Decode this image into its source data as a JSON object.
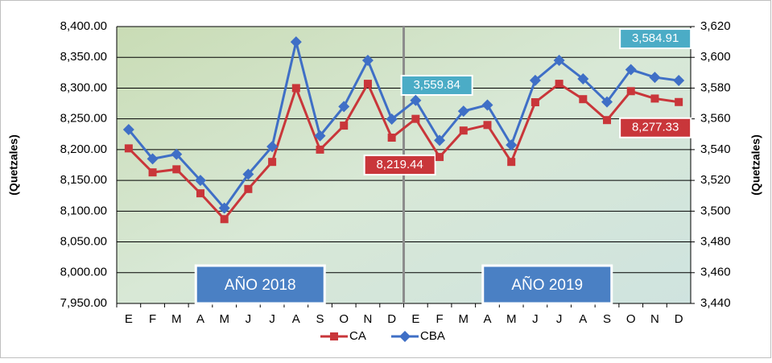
{
  "chart_data": {
    "type": "line",
    "categories": [
      "E",
      "F",
      "M",
      "A",
      "M",
      "J",
      "J",
      "A",
      "S",
      "O",
      "N",
      "D",
      "E",
      "F",
      "M",
      "A",
      "M",
      "J",
      "J",
      "A",
      "S",
      "O",
      "N",
      "D"
    ],
    "ylabel": "(Quetzales)",
    "y2label": "(Quetzales)",
    "ylim": [
      7950,
      8400
    ],
    "yticks": [
      {
        "value": 7950,
        "label": "7,950.00"
      },
      {
        "value": 8000,
        "label": "8,000.00"
      },
      {
        "value": 8050,
        "label": "8,050.00"
      },
      {
        "value": 8100,
        "label": "8,100.00"
      },
      {
        "value": 8150,
        "label": "8,150.00"
      },
      {
        "value": 8200,
        "label": "8,200.00"
      },
      {
        "value": 8250,
        "label": "8,250.00"
      },
      {
        "value": 8300,
        "label": "8,300.00"
      },
      {
        "value": 8350,
        "label": "8,350.00"
      },
      {
        "value": 8400,
        "label": "8,400.00"
      }
    ],
    "y2lim": [
      3440,
      3620
    ],
    "y2ticks": [
      {
        "value": 3440,
        "label": "3,440"
      },
      {
        "value": 3460,
        "label": "3,460"
      },
      {
        "value": 3480,
        "label": "3,480"
      },
      {
        "value": 3500,
        "label": "3,500"
      },
      {
        "value": 3520,
        "label": "3,520"
      },
      {
        "value": 3540,
        "label": "3,540"
      },
      {
        "value": 3560,
        "label": "3,560"
      },
      {
        "value": 3580,
        "label": "3,580"
      },
      {
        "value": 3600,
        "label": "3,600"
      },
      {
        "value": 3620,
        "label": "3,620"
      }
    ],
    "grid": true,
    "annotations": [
      "AÑO 2018",
      "AÑO 2019"
    ],
    "series": [
      {
        "name": "CA",
        "color": "#c9363a",
        "marker": "square",
        "values": [
          8202,
          8163,
          8168,
          8129,
          8087,
          8136,
          8180,
          8300,
          8200,
          8239,
          8307,
          8219.44,
          8250,
          8188,
          8231,
          8240,
          8180,
          8277,
          8307,
          8282,
          8248,
          8295,
          8283,
          8277.33
        ],
        "value_labels": [
          null,
          null,
          null,
          null,
          null,
          null,
          null,
          null,
          null,
          null,
          null,
          "8,219.44",
          null,
          null,
          null,
          null,
          null,
          null,
          null,
          null,
          null,
          null,
          null,
          "8,277.33"
        ]
      },
      {
        "name": "CBA",
        "color": "#3f6fc6",
        "marker": "diamond",
        "axis": "y2",
        "values": [
          3553,
          3534,
          3537,
          3520,
          3502,
          3524,
          3542,
          3610,
          3549,
          3568,
          3598,
          3559.84,
          3572,
          3546,
          3565,
          3569,
          3543,
          3585,
          3598,
          3586,
          3571,
          3592,
          3587,
          3584.91
        ],
        "value_labels": [
          null,
          null,
          null,
          null,
          null,
          null,
          null,
          null,
          null,
          null,
          null,
          "3,559.84",
          null,
          null,
          null,
          null,
          null,
          null,
          null,
          null,
          null,
          null,
          null,
          "3,584.91"
        ]
      }
    ]
  }
}
